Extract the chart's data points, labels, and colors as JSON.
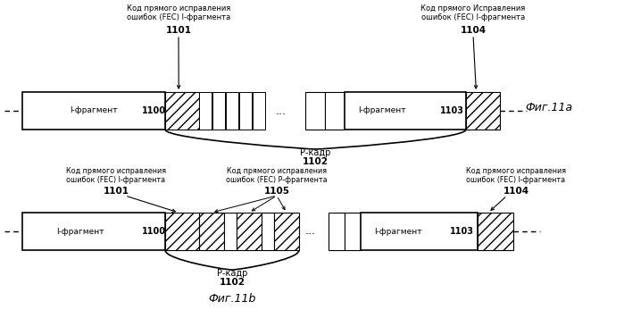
{
  "bg_color": "#ffffff",
  "fig_label_a": "Фиг.11a",
  "fig_label_b": "Фиг.11b",
  "label_i_fragment": "I-фрагмент",
  "label_p_kadr": "Р-кадр",
  "label_1100": "1100",
  "label_1101": "1101",
  "label_1102": "1102",
  "label_1103": "1103",
  "label_1104": "1104",
  "label_1105": "1105",
  "ann_fec_i_left_a": "Код прямого исправления\nошибок (FEC) I-фрагмента",
  "ann_fec_i_right_a": "Код прямого Исправления\nошибок (FEC) I-фрагмента",
  "ann_fec_i_left_b": "Код прямого исправления\nошибок (FEC) I-фрагмента",
  "ann_fec_p_b": "Код прямого исправления\nошибок (FEC) Р-фрагмента",
  "ann_fec_i_right_b": "Код прямого исправления\nошибок (FEC) I-фрагмента"
}
